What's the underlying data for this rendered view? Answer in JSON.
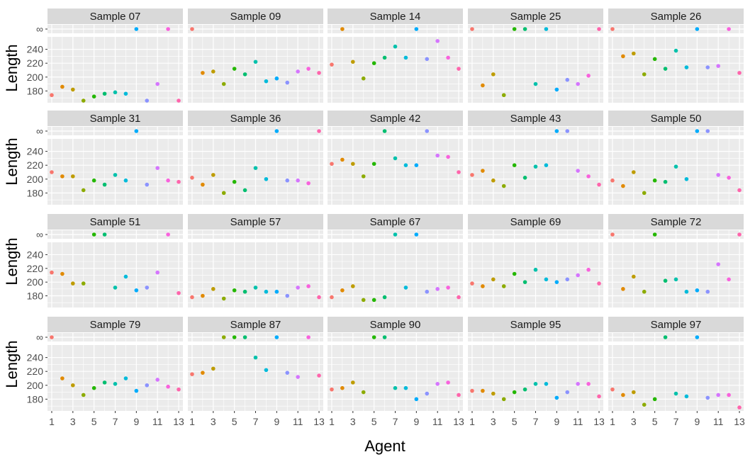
{
  "chart_data": {
    "type": "scatter",
    "facet_type": "facet_wrap",
    "ncol": 5,
    "xlabel": "Agent",
    "ylabel": "Length",
    "x_ticks": [
      "1",
      "3",
      "5",
      "7",
      "9",
      "11",
      "13"
    ],
    "y_ticks": [
      "180",
      "200",
      "220",
      "240"
    ],
    "inf_label": "∞",
    "ylim": [
      163,
      258
    ],
    "xlim": [
      0.6,
      13.4
    ],
    "agent_colors": [
      "#F8766D",
      "#E18A00",
      "#BE9C00",
      "#8CAB00",
      "#24B700",
      "#00BE70",
      "#00C1AB",
      "#00BBDA",
      "#00ACFC",
      "#8B93FF",
      "#D575FE",
      "#F962DD",
      "#FF65AC"
    ],
    "panels": [
      {
        "title": "Sample 07",
        "values": [
          174,
          186,
          182,
          166,
          172,
          176,
          178,
          176,
          null,
          166,
          190,
          null,
          166
        ]
      },
      {
        "title": "Sample 09",
        "values": [
          null,
          206,
          208,
          190,
          212,
          204,
          222,
          194,
          198,
          192,
          208,
          212,
          206
        ]
      },
      {
        "title": "Sample 14",
        "values": [
          218,
          null,
          222,
          198,
          220,
          228,
          244,
          228,
          null,
          226,
          252,
          228,
          212
        ]
      },
      {
        "title": "Sample 25",
        "values": [
          null,
          188,
          204,
          174,
          null,
          null,
          190,
          null,
          182,
          196,
          190,
          202,
          null
        ]
      },
      {
        "title": "Sample 26",
        "values": [
          null,
          230,
          234,
          204,
          226,
          212,
          238,
          214,
          null,
          214,
          216,
          null,
          206
        ]
      },
      {
        "title": "Sample 31",
        "values": [
          210,
          204,
          204,
          184,
          198,
          192,
          206,
          198,
          null,
          192,
          216,
          198,
          196
        ]
      },
      {
        "title": "Sample 36",
        "values": [
          202,
          192,
          206,
          180,
          196,
          184,
          216,
          200,
          null,
          198,
          198,
          194,
          null
        ]
      },
      {
        "title": "Sample 42",
        "values": [
          222,
          228,
          222,
          204,
          222,
          null,
          230,
          220,
          220,
          null,
          234,
          232,
          210
        ]
      },
      {
        "title": "Sample 43",
        "values": [
          206,
          212,
          198,
          190,
          220,
          202,
          218,
          220,
          null,
          null,
          212,
          204,
          192
        ]
      },
      {
        "title": "Sample 50",
        "values": [
          198,
          190,
          210,
          180,
          198,
          196,
          218,
          200,
          null,
          null,
          206,
          202,
          184
        ]
      },
      {
        "title": "Sample 51",
        "values": [
          214,
          212,
          198,
          198,
          null,
          null,
          192,
          208,
          188,
          192,
          214,
          null,
          184
        ]
      },
      {
        "title": "Sample 57",
        "values": [
          178,
          180,
          190,
          176,
          188,
          186,
          192,
          186,
          186,
          180,
          192,
          194,
          178
        ]
      },
      {
        "title": "Sample 67",
        "values": [
          178,
          188,
          194,
          174,
          174,
          178,
          null,
          192,
          null,
          186,
          190,
          192,
          178
        ]
      },
      {
        "title": "Sample 69",
        "values": [
          198,
          194,
          204,
          194,
          212,
          200,
          218,
          204,
          200,
          204,
          210,
          218,
          198
        ]
      },
      {
        "title": "Sample 72",
        "values": [
          null,
          190,
          208,
          186,
          null,
          202,
          204,
          186,
          188,
          186,
          226,
          204,
          null
        ]
      },
      {
        "title": "Sample 79",
        "values": [
          null,
          210,
          200,
          186,
          196,
          204,
          202,
          210,
          192,
          200,
          208,
          198,
          194
        ]
      },
      {
        "title": "Sample 87",
        "values": [
          216,
          218,
          224,
          null,
          null,
          null,
          240,
          222,
          null,
          218,
          212,
          null,
          214
        ]
      },
      {
        "title": "Sample 90",
        "values": [
          194,
          196,
          204,
          190,
          null,
          null,
          196,
          196,
          180,
          188,
          202,
          204,
          186
        ]
      },
      {
        "title": "Sample 95",
        "values": [
          192,
          192,
          188,
          180,
          190,
          194,
          202,
          202,
          182,
          190,
          202,
          202,
          184
        ]
      },
      {
        "title": "Sample 97",
        "values": [
          194,
          186,
          190,
          172,
          180,
          null,
          188,
          184,
          null,
          182,
          186,
          186,
          168
        ]
      }
    ]
  }
}
